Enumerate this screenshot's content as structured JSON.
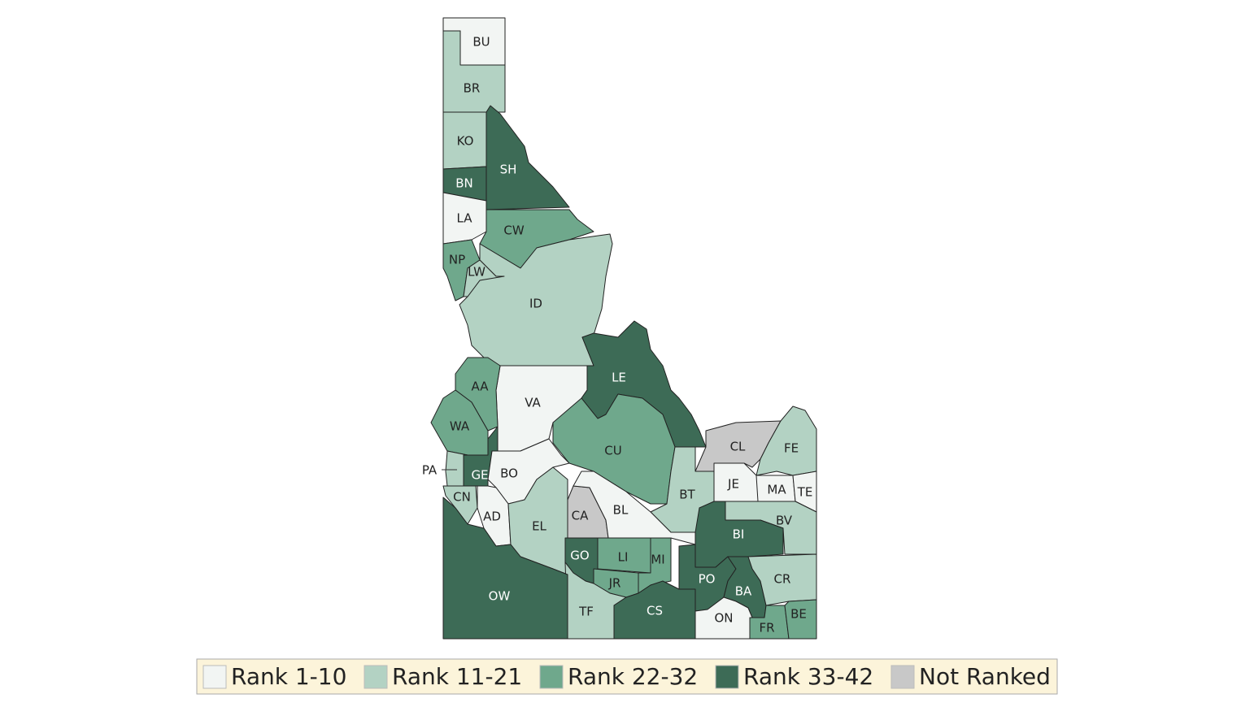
{
  "counties": [
    {
      "label": "BU",
      "color": "#f2f5f3"
    },
    {
      "label": "BR",
      "color": "#b3d2c3"
    },
    {
      "label": "KO",
      "color": "#b3d2c3"
    },
    {
      "label": "SH",
      "color": "#3d6b56"
    },
    {
      "label": "BN",
      "color": "#3d6b56"
    },
    {
      "label": "LA",
      "color": "#f2f5f3"
    },
    {
      "label": "CW",
      "color": "#6fa88c"
    },
    {
      "label": "NP",
      "color": "#b3d2c3"
    },
    {
      "label": "LW",
      "color": "#6fa88c"
    },
    {
      "label": "ID",
      "color": "#b3d2c3"
    },
    {
      "label": "VA",
      "color": "#f2f5f3"
    },
    {
      "label": "LE",
      "color": "#3d6b56"
    },
    {
      "label": "AA",
      "color": "#6fa88c"
    },
    {
      "label": "WA",
      "color": "#6fa88c"
    },
    {
      "label": "CU",
      "color": "#6fa88c"
    },
    {
      "label": "CL",
      "color": "#c8c8c8"
    },
    {
      "label": "FE",
      "color": "#b3d2c3"
    },
    {
      "label": "BT",
      "color": "#b3d2c3"
    },
    {
      "label": "JE",
      "color": "#f2f5f3"
    },
    {
      "label": "MA",
      "color": "#f2f5f3"
    },
    {
      "label": "TE",
      "color": "#f2f5f3"
    },
    {
      "label": "BV",
      "color": "#b3d2c3"
    },
    {
      "label": "BI",
      "color": "#3d6b56"
    },
    {
      "label": "PA",
      "color": "#b3d2c3"
    },
    {
      "label": "GE",
      "color": "#3d6b56"
    },
    {
      "label": "BO",
      "color": "#f2f5f3"
    },
    {
      "label": "CN",
      "color": "#b3d2c3"
    },
    {
      "label": "AD",
      "color": "#f2f5f3"
    },
    {
      "label": "EL",
      "color": "#b3d2c3"
    },
    {
      "label": "CA",
      "color": "#c8c8c8"
    },
    {
      "label": "BL",
      "color": "#f2f5f3"
    },
    {
      "label": "GO",
      "color": "#3d6b56"
    },
    {
      "label": "LI",
      "color": "#6fa88c"
    },
    {
      "label": "MI",
      "color": "#6fa88c"
    },
    {
      "label": "JR",
      "color": "#6fa88c"
    },
    {
      "label": "TF",
      "color": "#b3d2c3"
    },
    {
      "label": "OW",
      "color": "#3d6b56"
    },
    {
      "label": "CS",
      "color": "#3d6b56"
    },
    {
      "label": "PO",
      "color": "#3d6b56"
    },
    {
      "label": "BA",
      "color": "#3d6b56"
    },
    {
      "label": "CR",
      "color": "#b3d2c3"
    },
    {
      "label": "ON",
      "color": "#f2f5f3"
    },
    {
      "label": "FR",
      "color": "#6fa88c"
    },
    {
      "label": "BE",
      "color": "#6fa88c"
    }
  ],
  "legend": [
    {
      "label": "Rank 1-10",
      "color": "#f2f5f3"
    },
    {
      "label": "Rank 11-21",
      "color": "#b3d2c3"
    },
    {
      "label": "Rank 22-32",
      "color": "#6fa88c"
    },
    {
      "label": "Rank 33-42",
      "color": "#3d6b56"
    },
    {
      "label": "Not Ranked",
      "color": "#c8c8c8"
    }
  ]
}
